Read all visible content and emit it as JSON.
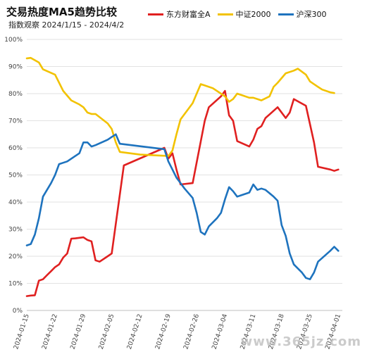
{
  "chart_data": {
    "type": "line",
    "title": "交易热度MA5趋势比较",
    "subtitle": "指数观察 2024/1/15 - 2024/4/2",
    "ylim": [
      0,
      100
    ],
    "y_ticks": [
      "0%",
      "10%",
      "20%",
      "30%",
      "40%",
      "50%",
      "60%",
      "70%",
      "80%",
      "90%",
      "100%"
    ],
    "x_ticks": [
      "2024-01-15",
      "2024-01-22",
      "2024-01-29",
      "2024-02-05",
      "2024-02-12",
      "2024-02-19",
      "2024-02-26",
      "2024-03-04",
      "2024-03-11",
      "2024-03-18",
      "2024-03-25",
      "2024-04-01"
    ],
    "x_span_days": 78,
    "series": [
      {
        "name": "东方财富全A",
        "color": "#e02020",
        "points": [
          [
            0,
            5.3
          ],
          [
            1,
            5.5
          ],
          [
            2,
            5.6
          ],
          [
            3,
            11
          ],
          [
            4,
            11.5
          ],
          [
            5,
            13
          ],
          [
            6,
            14.5
          ],
          [
            7,
            16
          ],
          [
            8,
            17
          ],
          [
            9,
            19.5
          ],
          [
            10,
            21
          ],
          [
            11,
            26.5
          ],
          [
            12,
            26.6
          ],
          [
            14,
            27
          ],
          [
            15,
            26
          ],
          [
            16,
            25.5
          ],
          [
            17,
            18.5
          ],
          [
            18,
            18
          ],
          [
            20,
            20
          ],
          [
            21,
            21
          ],
          [
            24,
            53.5
          ],
          [
            34,
            60
          ],
          [
            35,
            56
          ],
          [
            36,
            58
          ],
          [
            37,
            52
          ],
          [
            38,
            46.5
          ],
          [
            41,
            47
          ],
          [
            44,
            70
          ],
          [
            45,
            75
          ],
          [
            48,
            79
          ],
          [
            49,
            81
          ],
          [
            50,
            72
          ],
          [
            51,
            70
          ],
          [
            52,
            62.5
          ],
          [
            55,
            60.5
          ],
          [
            56,
            63
          ],
          [
            57,
            67
          ],
          [
            58,
            68
          ],
          [
            59,
            71
          ],
          [
            62,
            75
          ],
          [
            64,
            71
          ],
          [
            65,
            73
          ],
          [
            66,
            78
          ],
          [
            69,
            75.5
          ],
          [
            71,
            62
          ],
          [
            72,
            53
          ],
          [
            75,
            52
          ],
          [
            76,
            51.5
          ],
          [
            77,
            52
          ]
        ]
      },
      {
        "name": "中证2000",
        "color": "#f2c200",
        "points": [
          [
            0,
            93
          ],
          [
            1,
            93.2
          ],
          [
            3,
            91.5
          ],
          [
            4,
            89
          ],
          [
            7,
            87
          ],
          [
            9,
            81
          ],
          [
            11,
            77.5
          ],
          [
            13,
            76
          ],
          [
            14,
            75
          ],
          [
            15,
            73
          ],
          [
            16,
            72.5
          ],
          [
            17,
            72.5
          ],
          [
            20,
            69
          ],
          [
            21,
            67
          ],
          [
            22,
            62
          ],
          [
            23,
            58.5
          ],
          [
            28,
            57.5
          ],
          [
            35,
            57
          ],
          [
            36,
            59
          ],
          [
            37,
            65
          ],
          [
            38,
            70.5
          ],
          [
            41,
            76.5
          ],
          [
            42,
            80
          ],
          [
            43,
            83.5
          ],
          [
            44,
            83
          ],
          [
            46,
            82
          ],
          [
            48,
            80
          ],
          [
            49,
            79
          ],
          [
            50,
            77
          ],
          [
            51,
            78
          ],
          [
            52,
            80
          ],
          [
            53,
            79.5
          ],
          [
            55,
            78.5
          ],
          [
            56,
            78.5
          ],
          [
            58,
            77.5
          ],
          [
            60,
            79
          ],
          [
            61,
            82.5
          ],
          [
            62,
            84
          ],
          [
            64,
            87.5
          ],
          [
            66,
            88.5
          ],
          [
            67,
            89.2
          ],
          [
            69,
            87
          ],
          [
            70,
            84.5
          ],
          [
            72,
            82.5
          ],
          [
            73,
            81.5
          ],
          [
            75,
            80.5
          ],
          [
            76,
            80.2
          ]
        ]
      },
      {
        "name": "沪深300",
        "color": "#1e73be",
        "points": [
          [
            0,
            24
          ],
          [
            1,
            24.5
          ],
          [
            2,
            28
          ],
          [
            3,
            34
          ],
          [
            4,
            42
          ],
          [
            6,
            47
          ],
          [
            7,
            50
          ],
          [
            8,
            54
          ],
          [
            9,
            54.5
          ],
          [
            10,
            55
          ],
          [
            12,
            57
          ],
          [
            13,
            58
          ],
          [
            14,
            62
          ],
          [
            15,
            62
          ],
          [
            16,
            60.5
          ],
          [
            17,
            61
          ],
          [
            20,
            63
          ],
          [
            21,
            64
          ],
          [
            22,
            65
          ],
          [
            23,
            61.5
          ],
          [
            34,
            59.5
          ],
          [
            35,
            55
          ],
          [
            36,
            52
          ],
          [
            37,
            49
          ],
          [
            39,
            45
          ],
          [
            41,
            41.5
          ],
          [
            42,
            36
          ],
          [
            43,
            29
          ],
          [
            44,
            28
          ],
          [
            45,
            31
          ],
          [
            47,
            34
          ],
          [
            48,
            36
          ],
          [
            49,
            41
          ],
          [
            50,
            45.5
          ],
          [
            51,
            44
          ],
          [
            52,
            42
          ],
          [
            53,
            42.5
          ],
          [
            55,
            43.5
          ],
          [
            56,
            46.5
          ],
          [
            57,
            44.5
          ],
          [
            58,
            45
          ],
          [
            59,
            44.5
          ],
          [
            61,
            42
          ],
          [
            62,
            40.5
          ],
          [
            63,
            31.5
          ],
          [
            64,
            27.5
          ],
          [
            65,
            21
          ],
          [
            66,
            17
          ],
          [
            68,
            14
          ],
          [
            69,
            12
          ],
          [
            70,
            11.5
          ],
          [
            71,
            14
          ],
          [
            72,
            18
          ],
          [
            75,
            22
          ],
          [
            76,
            23.5
          ],
          [
            77,
            22
          ]
        ]
      }
    ]
  },
  "watermark": "www.365jz.com"
}
